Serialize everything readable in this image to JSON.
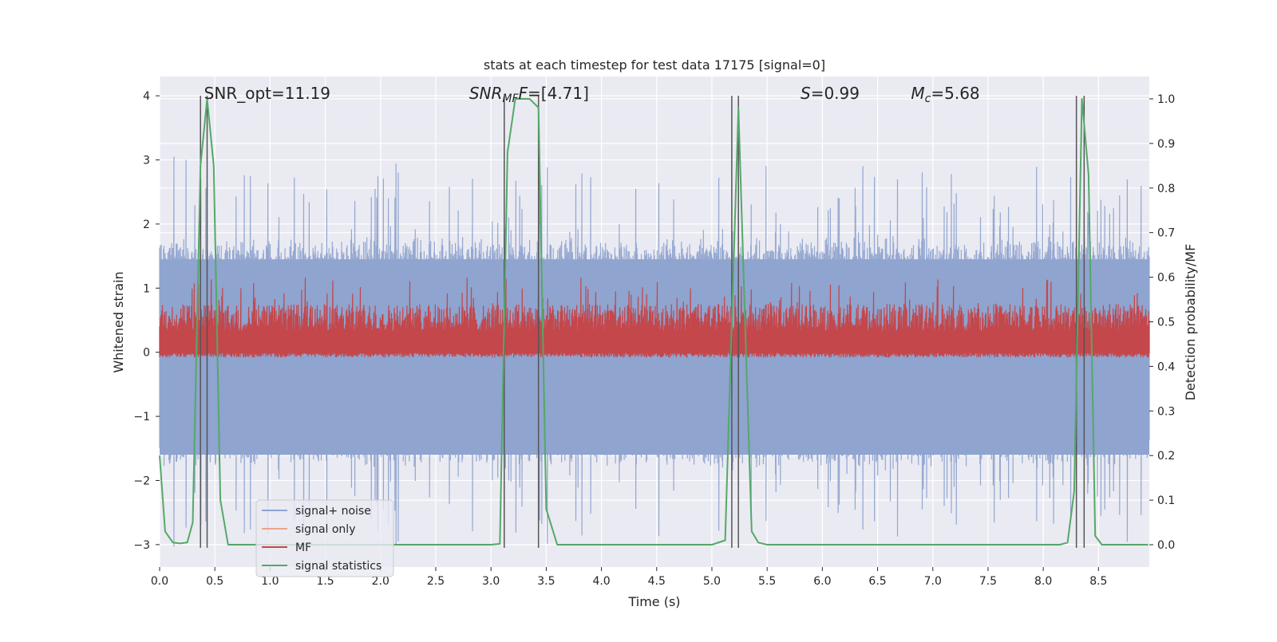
{
  "chart_data": {
    "type": "line",
    "title": "stats at each timestep for test data 17175 [signal=0]",
    "xlabel": "Time (s)",
    "ylabel_left": "Whitened strain",
    "ylabel_right": "Detection probability/MF",
    "xlim": [
      0.0,
      8.96
    ],
    "ylim_left": [
      -3.35,
      4.3
    ],
    "ylim_right": [
      -0.05,
      1.05
    ],
    "x_ticks": [
      0.0,
      0.5,
      1.0,
      1.5,
      2.0,
      2.5,
      3.0,
      3.5,
      4.0,
      4.5,
      5.0,
      5.5,
      6.0,
      6.5,
      7.0,
      7.5,
      8.0,
      8.5
    ],
    "x_tick_labels": [
      "0.0",
      "0.5",
      "1.0",
      "1.5",
      "2.0",
      "2.5",
      "3.0",
      "3.5",
      "4.0",
      "4.5",
      "5.0",
      "5.5",
      "6.0",
      "6.5",
      "7.0",
      "7.5",
      "8.0",
      "8.5"
    ],
    "y_left_ticks": [
      -3,
      -2,
      -1,
      0,
      1,
      2,
      3,
      4
    ],
    "y_left_tick_labels": [
      "−3",
      "−2",
      "−1",
      "0",
      "1",
      "2",
      "3",
      "4"
    ],
    "y_right_ticks": [
      0.0,
      0.1,
      0.2,
      0.3,
      0.4,
      0.5,
      0.6,
      0.7,
      0.8,
      0.9,
      1.0
    ],
    "y_right_tick_labels": [
      "0.0",
      "0.1",
      "0.2",
      "0.3",
      "0.4",
      "0.5",
      "0.6",
      "0.7",
      "0.8",
      "0.9",
      "1.0"
    ],
    "grid": true,
    "legend_position": "bottom-left",
    "annotations": [
      {
        "text": "SNR_opt=11.19",
        "x": 0.2
      },
      {
        "text": "SNR",
        "sub": "MF",
        "suffix": "=[4.71]",
        "italic": true,
        "x": 2.6
      },
      {
        "text": "S",
        "suffix": "=0.99",
        "italic": true,
        "x": 5.6
      },
      {
        "text": "M",
        "sub": "c",
        "suffix": "=5.68",
        "italic": true,
        "x": 6.6
      }
    ],
    "series": [
      {
        "name": "signal+ noise",
        "color": "#8fa4cf",
        "axis": "left",
        "band": {
          "centre": 0.0,
          "typical_amplitude": 1.8,
          "extreme_amplitude": 3.1
        }
      },
      {
        "name": "signal only",
        "color": "#eaa58b",
        "axis": "left",
        "values_note_x": [
          0.0,
          8.96
        ],
        "y": [
          0.0,
          0.0
        ]
      },
      {
        "name": "MF",
        "color": "#c4474b",
        "axis": "right",
        "band": {
          "low": 0.43,
          "high": 0.54,
          "peak": 0.6
        }
      },
      {
        "name": "signal statistics",
        "color": "#55a868",
        "axis": "right",
        "x": [
          0.0,
          0.05,
          0.12,
          0.18,
          0.25,
          0.3,
          0.37,
          0.43,
          0.49,
          0.55,
          0.62,
          0.8,
          3.0,
          3.08,
          3.15,
          3.22,
          3.35,
          3.43,
          3.5,
          3.6,
          5.0,
          5.12,
          5.18,
          5.24,
          5.3,
          5.36,
          5.42,
          5.5,
          8.15,
          8.22,
          8.28,
          8.35,
          8.41,
          8.47,
          8.53,
          8.6,
          8.95
        ],
        "y": [
          0.2,
          0.03,
          0.005,
          0.003,
          0.005,
          0.05,
          0.85,
          1.0,
          0.85,
          0.1,
          0.0,
          0.0,
          0.0,
          0.002,
          0.88,
          1.0,
          1.0,
          0.98,
          0.08,
          0.0,
          0.0,
          0.01,
          0.5,
          0.98,
          0.5,
          0.03,
          0.005,
          0.0,
          0.0,
          0.005,
          0.12,
          1.0,
          0.83,
          0.02,
          0.0,
          0.0,
          0.0
        ]
      }
    ],
    "vertical_markers": {
      "color": "#555555",
      "x": [
        0.37,
        0.43,
        3.12,
        3.43,
        5.18,
        5.24,
        8.3,
        8.37
      ],
      "y_range_left": [
        -3.05,
        4.0
      ]
    }
  }
}
